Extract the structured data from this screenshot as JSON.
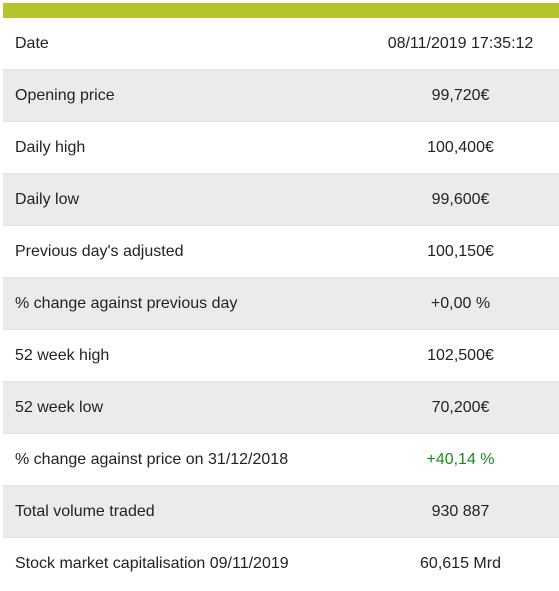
{
  "accent_color": "#b5c42a",
  "positive_color": "#1f8a1f",
  "rows": [
    {
      "label": "Date",
      "value": "08/11/2019 17:35:12"
    },
    {
      "label": "Opening price",
      "value": "99,720€"
    },
    {
      "label": "Daily high",
      "value": "100,400€"
    },
    {
      "label": "Daily low",
      "value": "99,600€"
    },
    {
      "label": "Previous day's adjusted",
      "value": "100,150€"
    },
    {
      "label": "% change against previous day",
      "value": "+0,00 %"
    },
    {
      "label": "52 week high",
      "value": "102,500€"
    },
    {
      "label": "52 week low",
      "value": "70,200€"
    },
    {
      "label": "% change against price on 31/12/2018",
      "value": "+40,14 %"
    },
    {
      "label": "Total volume traded",
      "value": "930 887"
    },
    {
      "label": "Stock market capitalisation 09/11/2019",
      "value": "60,615 Mrd"
    }
  ]
}
